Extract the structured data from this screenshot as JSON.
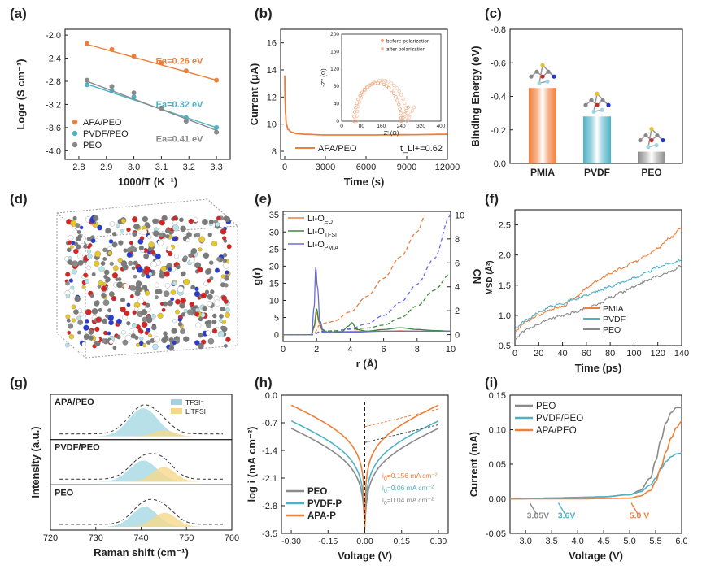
{
  "figure": {
    "colors": {
      "apa": "#ee7f3b",
      "pvdf": "#4fb1c6",
      "peo": "#8a8a8a",
      "dark": "#222222",
      "green": "#3a8a3a",
      "purple": "#6b6be0"
    }
  },
  "chart_data": [
    {
      "id": "a",
      "panel_label": "(a)",
      "type": "scatter",
      "xlabel": "1000/T (K⁻¹)",
      "ylabel": "Logσ (S cm⁻¹)",
      "xlim": [
        2.75,
        3.35
      ],
      "ylim": [
        -4.15,
        -1.9
      ],
      "xticks": [
        2.8,
        2.9,
        3.0,
        3.1,
        3.2,
        3.3
      ],
      "xtick_labels": [
        "2.8",
        "2.9",
        "3.0",
        "3.1",
        "3.2",
        "3.3"
      ],
      "yticks": [
        -4.0,
        -3.6,
        -3.2,
        -2.8,
        -2.4,
        -2.0
      ],
      "ytick_labels": [
        "-4.0",
        "-3.6",
        "-3.2",
        "-2.8",
        "-2.4",
        "-2.0"
      ],
      "legend": [
        "APA/PEO",
        "PVDF/PEO",
        "PEO"
      ],
      "series": [
        {
          "name": "APA/PEO",
          "color": "apa",
          "x": [
            2.83,
            2.92,
            3.0,
            3.1,
            3.19,
            3.3
          ],
          "y": [
            -2.15,
            -2.25,
            -2.37,
            -2.48,
            -2.62,
            -2.78
          ],
          "fit": [
            [
              2.83,
              -2.16
            ],
            [
              3.3,
              -2.78
            ]
          ]
        },
        {
          "name": "PVDF/PEO",
          "color": "pvdf",
          "x": [
            2.83,
            2.92,
            3.0,
            3.1,
            3.19,
            3.3
          ],
          "y": [
            -2.86,
            -2.96,
            -3.07,
            -3.27,
            -3.43,
            -3.6
          ],
          "fit": [
            [
              2.83,
              -2.85
            ],
            [
              3.3,
              -3.6
            ]
          ]
        },
        {
          "name": "PEO",
          "color": "peo",
          "x": [
            2.83,
            2.92,
            3.0,
            3.1,
            3.19,
            3.3
          ],
          "y": [
            -2.78,
            -2.89,
            -3.0,
            -3.26,
            -3.49,
            -3.68
          ],
          "fit": [
            [
              2.83,
              -2.8
            ],
            [
              3.3,
              -3.65
            ]
          ]
        }
      ],
      "annotations": [
        {
          "text": "Ea=0.26 eV",
          "color": "apa",
          "x": 3.08,
          "y": -2.5
        },
        {
          "text": "Ea=0.32 eV",
          "color": "pvdf",
          "x": 3.08,
          "y": -3.25
        },
        {
          "text": "Ea=0.41 eV",
          "color": "peo",
          "x": 3.08,
          "y": -3.85
        }
      ]
    },
    {
      "id": "b",
      "panel_label": "(b)",
      "type": "line",
      "xlabel": "Time (s)",
      "ylabel": "Current (μA)",
      "xlim": [
        -300,
        12000
      ],
      "ylim": [
        7.4,
        17
      ],
      "xticks": [
        0,
        3000,
        6000,
        9000,
        12000
      ],
      "xtick_labels": [
        "0",
        "3000",
        "6000",
        "9000",
        "12000"
      ],
      "yticks": [
        8,
        10,
        12,
        14,
        16
      ],
      "ytick_labels": [
        "8",
        "10",
        "12",
        "14",
        "16"
      ],
      "legend": [
        "APA/PEO"
      ],
      "note": "t_Li+=0.62",
      "series": [
        {
          "name": "APA/PEO",
          "color": "apa",
          "x": [
            0,
            20,
            60,
            120,
            250,
            500,
            900,
            1500,
            3000,
            6000,
            9000,
            12000
          ],
          "y": [
            13.6,
            12.0,
            10.8,
            10.0,
            9.6,
            9.4,
            9.3,
            9.25,
            9.2,
            9.2,
            9.22,
            9.25
          ]
        }
      ],
      "inset": {
        "xlabel": "Z' (Ω)",
        "ylabel": "-Z'' (Ω)",
        "xlim": [
          0,
          400
        ],
        "ylim": [
          0,
          200
        ],
        "xticks": [
          0,
          80,
          160,
          240,
          320,
          400
        ],
        "yticks": [
          0,
          40,
          80,
          120,
          160,
          200
        ],
        "legend": [
          "before polarization",
          "after polarization"
        ],
        "series": [
          {
            "name": "before polarization",
            "center": 145,
            "radius": 95
          },
          {
            "name": "after polarization",
            "center": 162,
            "radius": 102
          }
        ]
      }
    },
    {
      "id": "c",
      "panel_label": "(c)",
      "type": "bar",
      "ylabel": "Binding Energy (eV)",
      "categories": [
        "PMIA",
        "PVDF",
        "PEO"
      ],
      "values": [
        -0.45,
        -0.28,
        -0.07
      ],
      "ylim": [
        0,
        -0.8
      ],
      "yticks": [
        0,
        -0.2,
        -0.4,
        -0.6,
        -0.8
      ],
      "ytick_labels": [
        "0.0",
        "-0.2",
        "-0.4",
        "-0.6",
        "-0.8"
      ],
      "bar_colors": [
        "apa",
        "pvdf",
        "peo"
      ]
    },
    {
      "id": "d",
      "panel_label": "(d)",
      "type": "other",
      "description_free": true
    },
    {
      "id": "e",
      "panel_label": "(e)",
      "type": "line",
      "xlabel": "r (Å)",
      "ylabel": "g(r)",
      "y2label": "CN",
      "xlim": [
        0,
        10
      ],
      "ylim": [
        -2,
        36
      ],
      "y2lim": [
        -0.57,
        10.3
      ],
      "xticks": [
        0,
        2,
        4,
        6,
        8,
        10
      ],
      "xtick_labels": [
        "0",
        "2",
        "4",
        "6",
        "8",
        "10"
      ],
      "yticks": [
        0,
        5,
        10,
        15,
        20,
        25,
        30,
        35
      ],
      "ytick_labels": [
        "0",
        "5",
        "10",
        "15",
        "20",
        "25",
        "30",
        "35"
      ],
      "y2ticks": [
        0,
        2,
        4,
        6,
        8,
        10
      ],
      "y2tick_labels": [
        "0",
        "2",
        "4",
        "6",
        "8",
        "10"
      ],
      "legend": [
        {
          "base": "Li-O",
          "sub": "EO",
          "color": "apa"
        },
        {
          "base": "Li-O",
          "sub": "TFSI",
          "color": "green"
        },
        {
          "base": "Li-O",
          "sub": "PMIA",
          "color": "purple"
        }
      ],
      "series": [
        {
          "name": "Li-O EO g(r)",
          "color": "apa",
          "x": [
            0,
            1.7,
            1.85,
            2.0,
            2.15,
            2.35,
            2.7,
            3.5,
            4.5,
            6,
            7,
            8,
            9,
            10
          ],
          "y": [
            0,
            0,
            2,
            6.5,
            3.5,
            1.2,
            0.8,
            0.9,
            1.0,
            1.0,
            1.1,
            1.0,
            1.0,
            1.0
          ]
        },
        {
          "name": "Li-O TFSI g(r)",
          "color": "green",
          "x": [
            0,
            1.7,
            1.85,
            2.0,
            2.15,
            2.35,
            2.7,
            3.5,
            3.9,
            4.1,
            4.4,
            5,
            6,
            7,
            8,
            9,
            10
          ],
          "y": [
            0,
            0,
            2.5,
            7.5,
            4,
            1.5,
            0.5,
            0.8,
            2.5,
            3.5,
            1.5,
            1,
            1.5,
            2,
            1.5,
            1.2,
            1.0
          ]
        },
        {
          "name": "Li-O PMIA g(r)",
          "color": "purple",
          "x": [
            0,
            1.7,
            1.85,
            1.95,
            2.05,
            2.2,
            2.4,
            2.8,
            4,
            6,
            8,
            10
          ],
          "y": [
            0,
            0,
            8,
            19.5,
            14,
            4,
            1.2,
            0.5,
            0.7,
            1.0,
            1.0,
            1.0
          ]
        },
        {
          "name": "Li-O EO CN",
          "color": "apa",
          "dashed": true,
          "axis": "y2",
          "x": [
            0,
            1.8,
            2.2,
            2.6,
            3,
            4,
            5,
            6,
            7,
            8,
            8.5
          ],
          "y": [
            0,
            0,
            0.8,
            1.0,
            1.1,
            1.9,
            3.2,
            4.7,
            6.5,
            8.6,
            10
          ]
        },
        {
          "name": "Li-O TFSI CN",
          "color": "green",
          "dashed": true,
          "axis": "y2",
          "x": [
            0,
            1.8,
            2.2,
            2.6,
            3,
            4,
            5,
            6,
            7,
            8,
            9,
            10
          ],
          "y": [
            0,
            0,
            0.25,
            0.3,
            0.32,
            0.45,
            0.55,
            0.8,
            1.4,
            2.4,
            3.7,
            5.1
          ]
        },
        {
          "name": "Li-O PMIA CN",
          "color": "purple",
          "dashed": true,
          "axis": "y2",
          "x": [
            0,
            1.8,
            2.2,
            2.6,
            3,
            4,
            5,
            6,
            7,
            8,
            9,
            10
          ],
          "y": [
            0,
            0,
            0.2,
            0.22,
            0.25,
            0.5,
            0.9,
            1.6,
            2.7,
            4.2,
            6.3,
            10
          ]
        }
      ]
    },
    {
      "id": "f",
      "panel_label": "(f)",
      "type": "line",
      "xlabel": "Time (ps)",
      "ylabel": "MSD (Å²)",
      "xlim": [
        0,
        140
      ],
      "ylim": [
        0.5,
        2.75
      ],
      "xticks": [
        0,
        20,
        40,
        60,
        80,
        100,
        120,
        140
      ],
      "xtick_labels": [
        "0",
        "20",
        "40",
        "60",
        "80",
        "100",
        "120",
        "140"
      ],
      "yticks": [
        0.5,
        1.0,
        1.5,
        2.0,
        2.5
      ],
      "ytick_labels": [
        "0.5",
        "1.0",
        "1.5",
        "2.0",
        "2.5"
      ],
      "legend": [
        "PMIA",
        "PVDF",
        "PEO"
      ],
      "series": [
        {
          "name": "PMIA",
          "color": "apa",
          "x": [
            0,
            10,
            20,
            30,
            40,
            50,
            60,
            70,
            80,
            90,
            100,
            110,
            120,
            130,
            140
          ],
          "y": [
            0.74,
            0.9,
            1.0,
            1.1,
            1.15,
            1.28,
            1.45,
            1.58,
            1.7,
            1.78,
            1.88,
            2.0,
            2.12,
            2.28,
            2.45
          ]
        },
        {
          "name": "PVDF",
          "color": "pvdf",
          "x": [
            0,
            10,
            20,
            30,
            40,
            50,
            60,
            70,
            80,
            90,
            100,
            110,
            120,
            130,
            140
          ],
          "y": [
            0.78,
            0.92,
            1.05,
            1.15,
            1.2,
            1.27,
            1.34,
            1.4,
            1.48,
            1.55,
            1.62,
            1.7,
            1.8,
            1.86,
            1.92
          ]
        },
        {
          "name": "PEO",
          "color": "peo",
          "x": [
            0,
            10,
            20,
            30,
            40,
            50,
            60,
            70,
            80,
            90,
            100,
            110,
            120,
            130,
            140
          ],
          "y": [
            0.62,
            0.76,
            0.86,
            0.95,
            1.0,
            1.05,
            1.12,
            1.18,
            1.3,
            1.38,
            1.47,
            1.57,
            1.65,
            1.72,
            1.82
          ]
        }
      ]
    },
    {
      "id": "g",
      "panel_label": "(g)",
      "type": "area",
      "xlabel": "Raman shift (cm⁻¹)",
      "ylabel": "Intensity (a.u.)",
      "xlim": [
        720,
        760
      ],
      "xticks": [
        720,
        730,
        740,
        750,
        760
      ],
      "xtick_labels": [
        "720",
        "730",
        "740",
        "750",
        "760"
      ],
      "legend": [
        "TFSI⁻",
        "LiTFSI"
      ],
      "panels": [
        {
          "name": "APA/PEO",
          "tfsi": {
            "center": 740.5,
            "amp": 1.0,
            "width": 3.2
          },
          "litfsi": {
            "center": 745,
            "amp": 0.22,
            "width": 2.3
          }
        },
        {
          "name": "PVDF/PEO",
          "tfsi": {
            "center": 740.5,
            "amp": 0.75,
            "width": 3.0
          },
          "litfsi": {
            "center": 745,
            "amp": 0.52,
            "width": 2.5
          }
        },
        {
          "name": "PEO",
          "tfsi": {
            "center": 740.8,
            "amp": 0.72,
            "width": 2.8
          },
          "litfsi": {
            "center": 745.2,
            "amp": 0.5,
            "width": 2.6
          }
        }
      ]
    },
    {
      "id": "h",
      "panel_label": "(h)",
      "type": "line",
      "xlabel": "Voltage (V)",
      "ylabel": "log i (mA cm⁻²)",
      "xlim": [
        -0.34,
        0.34
      ],
      "ylim": [
        -3.5,
        0
      ],
      "xticks": [
        -0.3,
        -0.15,
        0,
        0.15,
        0.3
      ],
      "xtick_labels": [
        "-0.30",
        "-0.15",
        "0.00",
        "0.15",
        "0.30"
      ],
      "yticks": [
        -3.5,
        -2.8,
        -2.1,
        -1.4,
        -0.7,
        0
      ],
      "ytick_labels": [
        "-3.5",
        "-2.8",
        "-2.1",
        "-1.4",
        "-0.7",
        "0.0"
      ],
      "legend": [
        "PEO",
        "PVDF-P",
        "APA-P"
      ],
      "series": [
        {
          "name": "PEO",
          "color": "peo",
          "logi0": -1.4,
          "a": 2.2,
          "floor": -3.3
        },
        {
          "name": "PVDF-P",
          "color": "pvdf",
          "logi0": -1.2,
          "a": 2.1,
          "floor": -3.2
        },
        {
          "name": "APA-P",
          "color": "apa",
          "logi0": -0.8,
          "a": 2.1,
          "floor": -3.4
        }
      ],
      "annotations": [
        {
          "base": "i",
          "sub": "0",
          "text": "=0.156 mA cm⁻²",
          "color": "apa"
        },
        {
          "base": "i",
          "sub": "0",
          "text": "=0.06 mA cm⁻²",
          "color": "pvdf"
        },
        {
          "base": "i",
          "sub": "0",
          "text": "=0.04 mA cm⁻²",
          "color": "peo"
        }
      ]
    },
    {
      "id": "i",
      "panel_label": "(i)",
      "type": "line",
      "xlabel": "Voltage (V)",
      "ylabel": "Current (mA)",
      "xlim": [
        2.7,
        6.0
      ],
      "ylim": [
        -0.05,
        0.15
      ],
      "xticks": [
        3.0,
        3.5,
        4.0,
        4.5,
        5.0,
        5.5,
        6.0
      ],
      "xtick_labels": [
        "3.0",
        "3.5",
        "4.0",
        "4.5",
        "5.0",
        "5.5",
        "6.0"
      ],
      "yticks": [
        -0.05,
        0,
        0.05,
        0.1,
        0.15
      ],
      "ytick_labels": [
        "-0.05",
        "0.00",
        "0.05",
        "0.10",
        "0.15"
      ],
      "legend": [
        "PEO",
        "PVDF/PEO",
        "APA/PEO"
      ],
      "series": [
        {
          "name": "PEO",
          "color": "peo",
          "x": [
            2.7,
            3.5,
            4.0,
            4.5,
            5.0,
            5.2,
            5.4,
            5.5,
            5.6,
            5.7,
            5.8,
            5.9,
            6.0
          ],
          "y": [
            0,
            0.001,
            0.002,
            0.003,
            0.006,
            0.012,
            0.03,
            0.055,
            0.085,
            0.11,
            0.125,
            0.132,
            0.132
          ]
        },
        {
          "name": "PVDF/PEO",
          "color": "pvdf",
          "x": [
            2.7,
            3.5,
            4.0,
            4.5,
            5.0,
            5.2,
            5.4,
            5.5,
            5.6,
            5.7,
            5.8,
            5.9,
            6.0
          ],
          "y": [
            0,
            0.001,
            0.002,
            0.003,
            0.006,
            0.01,
            0.02,
            0.03,
            0.043,
            0.054,
            0.061,
            0.065,
            0.066
          ]
        },
        {
          "name": "APA/PEO",
          "color": "apa",
          "x": [
            2.7,
            3.5,
            4.0,
            4.5,
            5.0,
            5.2,
            5.4,
            5.5,
            5.6,
            5.7,
            5.8,
            5.9,
            6.0
          ],
          "y": [
            0,
            0,
            0,
            0.0005,
            0.001,
            0.004,
            0.012,
            0.025,
            0.045,
            0.068,
            0.088,
            0.103,
            0.112
          ]
        }
      ],
      "annotations": [
        {
          "text": "3.05V",
          "color": "peo"
        },
        {
          "text": "3.6V",
          "color": "pvdf"
        },
        {
          "text": "5.0 V",
          "color": "apa"
        }
      ]
    }
  ]
}
